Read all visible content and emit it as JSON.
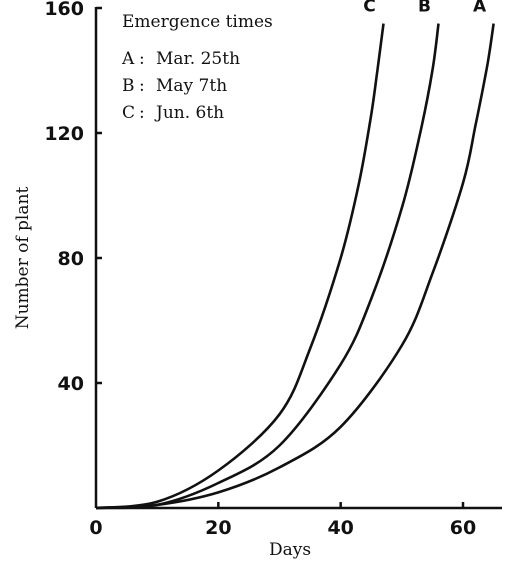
{
  "chart_data": {
    "type": "line",
    "xlabel": "Days",
    "ylabel": "Number of plant",
    "xlim": [
      0,
      66
    ],
    "ylim": [
      0,
      160
    ],
    "x_ticks": [
      "0",
      "20",
      "40",
      "60"
    ],
    "y_ticks": [
      "40",
      "80",
      "120",
      "160"
    ],
    "grid": false,
    "legend": {
      "title": "Emergence times",
      "placement": "top-left",
      "entries": [
        {
          "key": "A",
          "sep": ":",
          "date": "Mar. 25th"
        },
        {
          "key": "B",
          "sep": ":",
          "date": "May 7th"
        },
        {
          "key": "C",
          "sep": ":",
          "date": "Jun. 6th"
        }
      ]
    },
    "series": [
      {
        "name": "A",
        "x": [
          0,
          10,
          20,
          30,
          40,
          50,
          55,
          60,
          62,
          64,
          65
        ],
        "y": [
          0,
          1,
          5,
          13,
          26,
          52,
          75,
          104,
          122,
          142,
          155
        ]
      },
      {
        "name": "B",
        "x": [
          0,
          10,
          20,
          30,
          40,
          45,
          50,
          53,
          55,
          56
        ],
        "y": [
          0,
          1,
          8,
          20,
          46,
          67,
          96,
          120,
          140,
          155
        ]
      },
      {
        "name": "C",
        "x": [
          0,
          10,
          20,
          30,
          35,
          40,
          43,
          45,
          46,
          47
        ],
        "y": [
          0,
          2,
          12,
          30,
          51,
          80,
          104,
          126,
          140,
          155
        ]
      }
    ]
  }
}
